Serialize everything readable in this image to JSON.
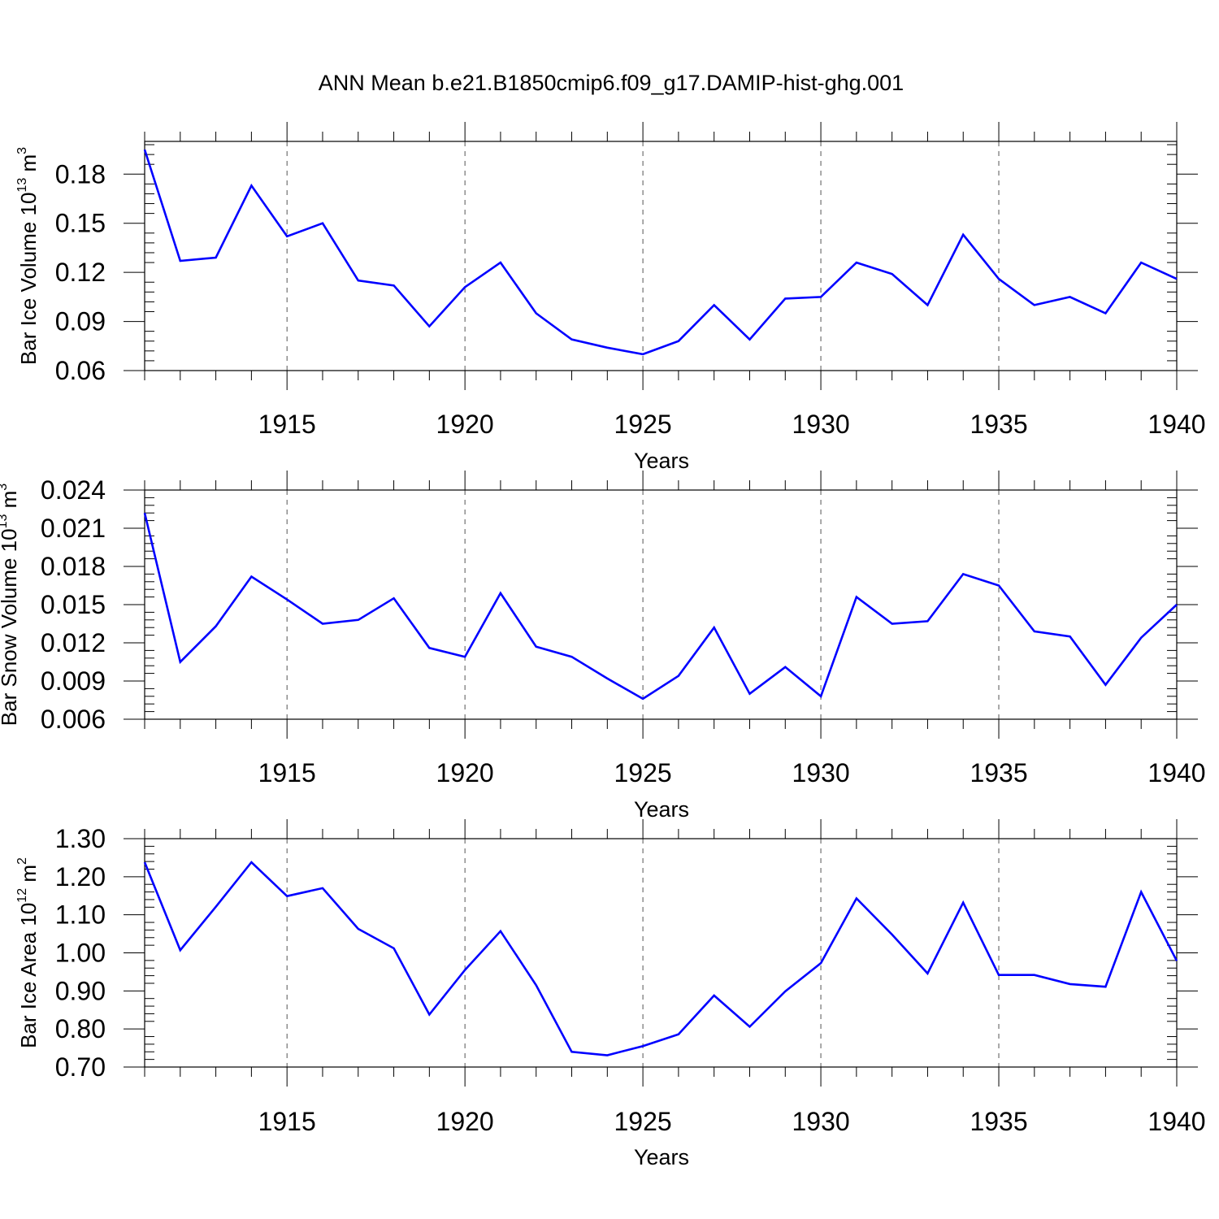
{
  "title": "ANN Mean b.e21.B1850cmip6.f09_g17.DAMIP-hist-ghg.001",
  "line_color": "#0000ff",
  "chart_data": [
    {
      "type": "line",
      "ylabel_main": "Bar Ice Volume 10",
      "ylabel_exp": "13",
      "ylabel_unit": " m",
      "ylabel_unit_exp": "3",
      "xlabel": "Years",
      "xlim": [
        1911,
        1940
      ],
      "ylim": [
        0.06,
        0.2
      ],
      "yticks": [
        0.06,
        0.09,
        0.12,
        0.15,
        0.18
      ],
      "ytick_labels": [
        "0.06",
        "0.09",
        "0.12",
        "0.15",
        "0.18"
      ],
      "xticks": [
        1915,
        1920,
        1925,
        1930,
        1935,
        1940
      ],
      "xtick_labels": [
        "1915",
        "1920",
        "1925",
        "1930",
        "1935",
        "1940"
      ],
      "grid": "vertical dashed at labeled years",
      "x": [
        1911,
        1912,
        1913,
        1914,
        1915,
        1916,
        1917,
        1918,
        1919,
        1920,
        1921,
        1922,
        1923,
        1924,
        1925,
        1926,
        1927,
        1928,
        1929,
        1930,
        1931,
        1932,
        1933,
        1934,
        1935,
        1936,
        1937,
        1938,
        1939,
        1940
      ],
      "values": [
        0.195,
        0.127,
        0.129,
        0.173,
        0.142,
        0.15,
        0.115,
        0.112,
        0.087,
        0.111,
        0.126,
        0.095,
        0.079,
        0.074,
        0.07,
        0.078,
        0.1,
        0.079,
        0.104,
        0.105,
        0.126,
        0.119,
        0.1,
        0.143,
        0.116,
        0.1,
        0.105,
        0.095,
        0.126,
        0.116
      ]
    },
    {
      "type": "line",
      "ylabel_main": "Bar Snow Volume 10",
      "ylabel_exp": "13",
      "ylabel_unit": " m",
      "ylabel_unit_exp": "3",
      "xlabel": "Years",
      "xlim": [
        1911,
        1940
      ],
      "ylim": [
        0.006,
        0.024
      ],
      "yticks": [
        0.006,
        0.009,
        0.012,
        0.015,
        0.018,
        0.021,
        0.024
      ],
      "ytick_labels": [
        "0.006",
        "0.009",
        "0.012",
        "0.015",
        "0.018",
        "0.021",
        "0.024"
      ],
      "xticks": [
        1915,
        1920,
        1925,
        1930,
        1935,
        1940
      ],
      "xtick_labels": [
        "1915",
        "1920",
        "1925",
        "1930",
        "1935",
        "1940"
      ],
      "grid": "vertical dashed at labeled years",
      "x": [
        1911,
        1912,
        1913,
        1914,
        1915,
        1916,
        1917,
        1918,
        1919,
        1920,
        1921,
        1922,
        1923,
        1924,
        1925,
        1926,
        1927,
        1928,
        1929,
        1930,
        1931,
        1932,
        1933,
        1934,
        1935,
        1936,
        1937,
        1938,
        1939,
        1940
      ],
      "values": [
        0.0222,
        0.0105,
        0.0133,
        0.0172,
        0.0154,
        0.0135,
        0.0138,
        0.0155,
        0.0116,
        0.0109,
        0.0159,
        0.0117,
        0.0109,
        0.0092,
        0.0076,
        0.0094,
        0.0132,
        0.008,
        0.0101,
        0.0078,
        0.0156,
        0.0135,
        0.0137,
        0.0174,
        0.0165,
        0.0129,
        0.0125,
        0.0087,
        0.0124,
        0.015
      ]
    },
    {
      "type": "line",
      "ylabel_main": "Bar Ice Area 10",
      "ylabel_exp": "12",
      "ylabel_unit": " m",
      "ylabel_unit_exp": "2",
      "xlabel": "Years",
      "xlim": [
        1911,
        1940
      ],
      "ylim": [
        0.7,
        1.3
      ],
      "yticks": [
        0.7,
        0.8,
        0.9,
        1.0,
        1.1,
        1.2,
        1.3
      ],
      "ytick_labels": [
        "0.70",
        "0.80",
        "0.90",
        "1.00",
        "1.10",
        "1.20",
        "1.30"
      ],
      "xticks": [
        1915,
        1920,
        1925,
        1930,
        1935,
        1940
      ],
      "xtick_labels": [
        "1915",
        "1920",
        "1925",
        "1930",
        "1935",
        "1940"
      ],
      "grid": "vertical dashed at labeled years",
      "x": [
        1911,
        1912,
        1913,
        1914,
        1915,
        1916,
        1917,
        1918,
        1919,
        1920,
        1921,
        1922,
        1923,
        1924,
        1925,
        1926,
        1927,
        1928,
        1929,
        1930,
        1931,
        1932,
        1933,
        1934,
        1935,
        1936,
        1937,
        1938,
        1939,
        1940
      ],
      "values": [
        1.238,
        1.007,
        1.121,
        1.238,
        1.149,
        1.17,
        1.063,
        1.012,
        0.838,
        0.955,
        1.057,
        0.915,
        0.74,
        0.731,
        0.755,
        0.786,
        0.888,
        0.806,
        0.899,
        0.973,
        1.143,
        1.048,
        0.946,
        1.132,
        0.942,
        0.942,
        0.918,
        0.911,
        1.16,
        0.979
      ]
    }
  ]
}
